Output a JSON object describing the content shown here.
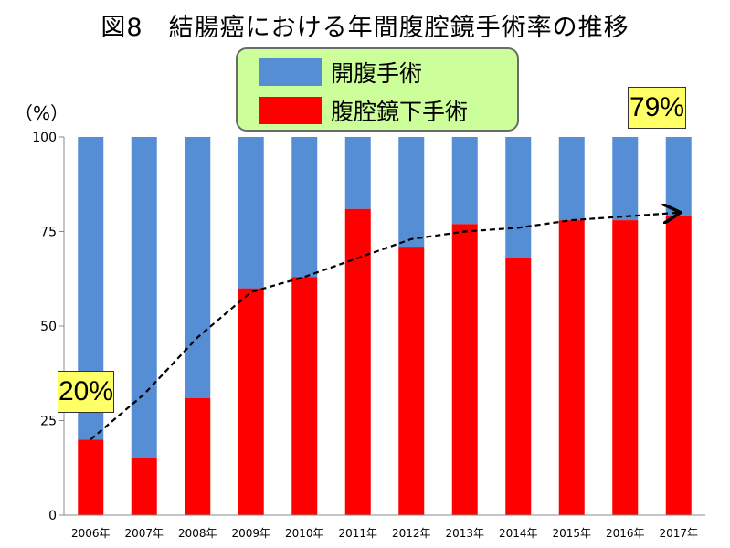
{
  "chart_data": {
    "type": "bar",
    "stacked": true,
    "title": "図8　結腸癌における年間腹腔鏡手術率の推移",
    "ylabel": "（%）",
    "ylim": [
      0,
      100
    ],
    "yticks": [
      0,
      25,
      50,
      75,
      100
    ],
    "grid": false,
    "legend_position": "top-center",
    "categories": [
      "2006年",
      "2007年",
      "2008年",
      "2009年",
      "2010年",
      "2011年",
      "2012年",
      "2013年",
      "2014年",
      "2015年",
      "2016年",
      "2017年"
    ],
    "series": [
      {
        "name": "腹腔鏡下手術",
        "color": "#ff0000",
        "values": [
          20,
          15,
          31,
          60,
          63,
          81,
          71,
          77,
          68,
          78,
          78,
          79
        ]
      },
      {
        "name": "開腹手術",
        "color": "#558ed5",
        "values": [
          80,
          85,
          69,
          40,
          37,
          19,
          29,
          23,
          32,
          22,
          22,
          21
        ]
      }
    ],
    "trend_line": {
      "style": "dashed-arrow",
      "color": "#000000",
      "values": [
        20,
        32,
        47,
        59,
        63,
        68,
        73,
        75,
        76,
        78,
        79,
        80
      ]
    },
    "annotations": {
      "start": "20%",
      "end": "79%"
    }
  },
  "legend": {
    "items": [
      {
        "label": "開腹手術",
        "color": "#558ed5"
      },
      {
        "label": "腹腔鏡下手術",
        "color": "#ff0000"
      }
    ]
  },
  "colors": {
    "legend_bg": "#ccff99",
    "callout_bg": "#ffff66"
  }
}
